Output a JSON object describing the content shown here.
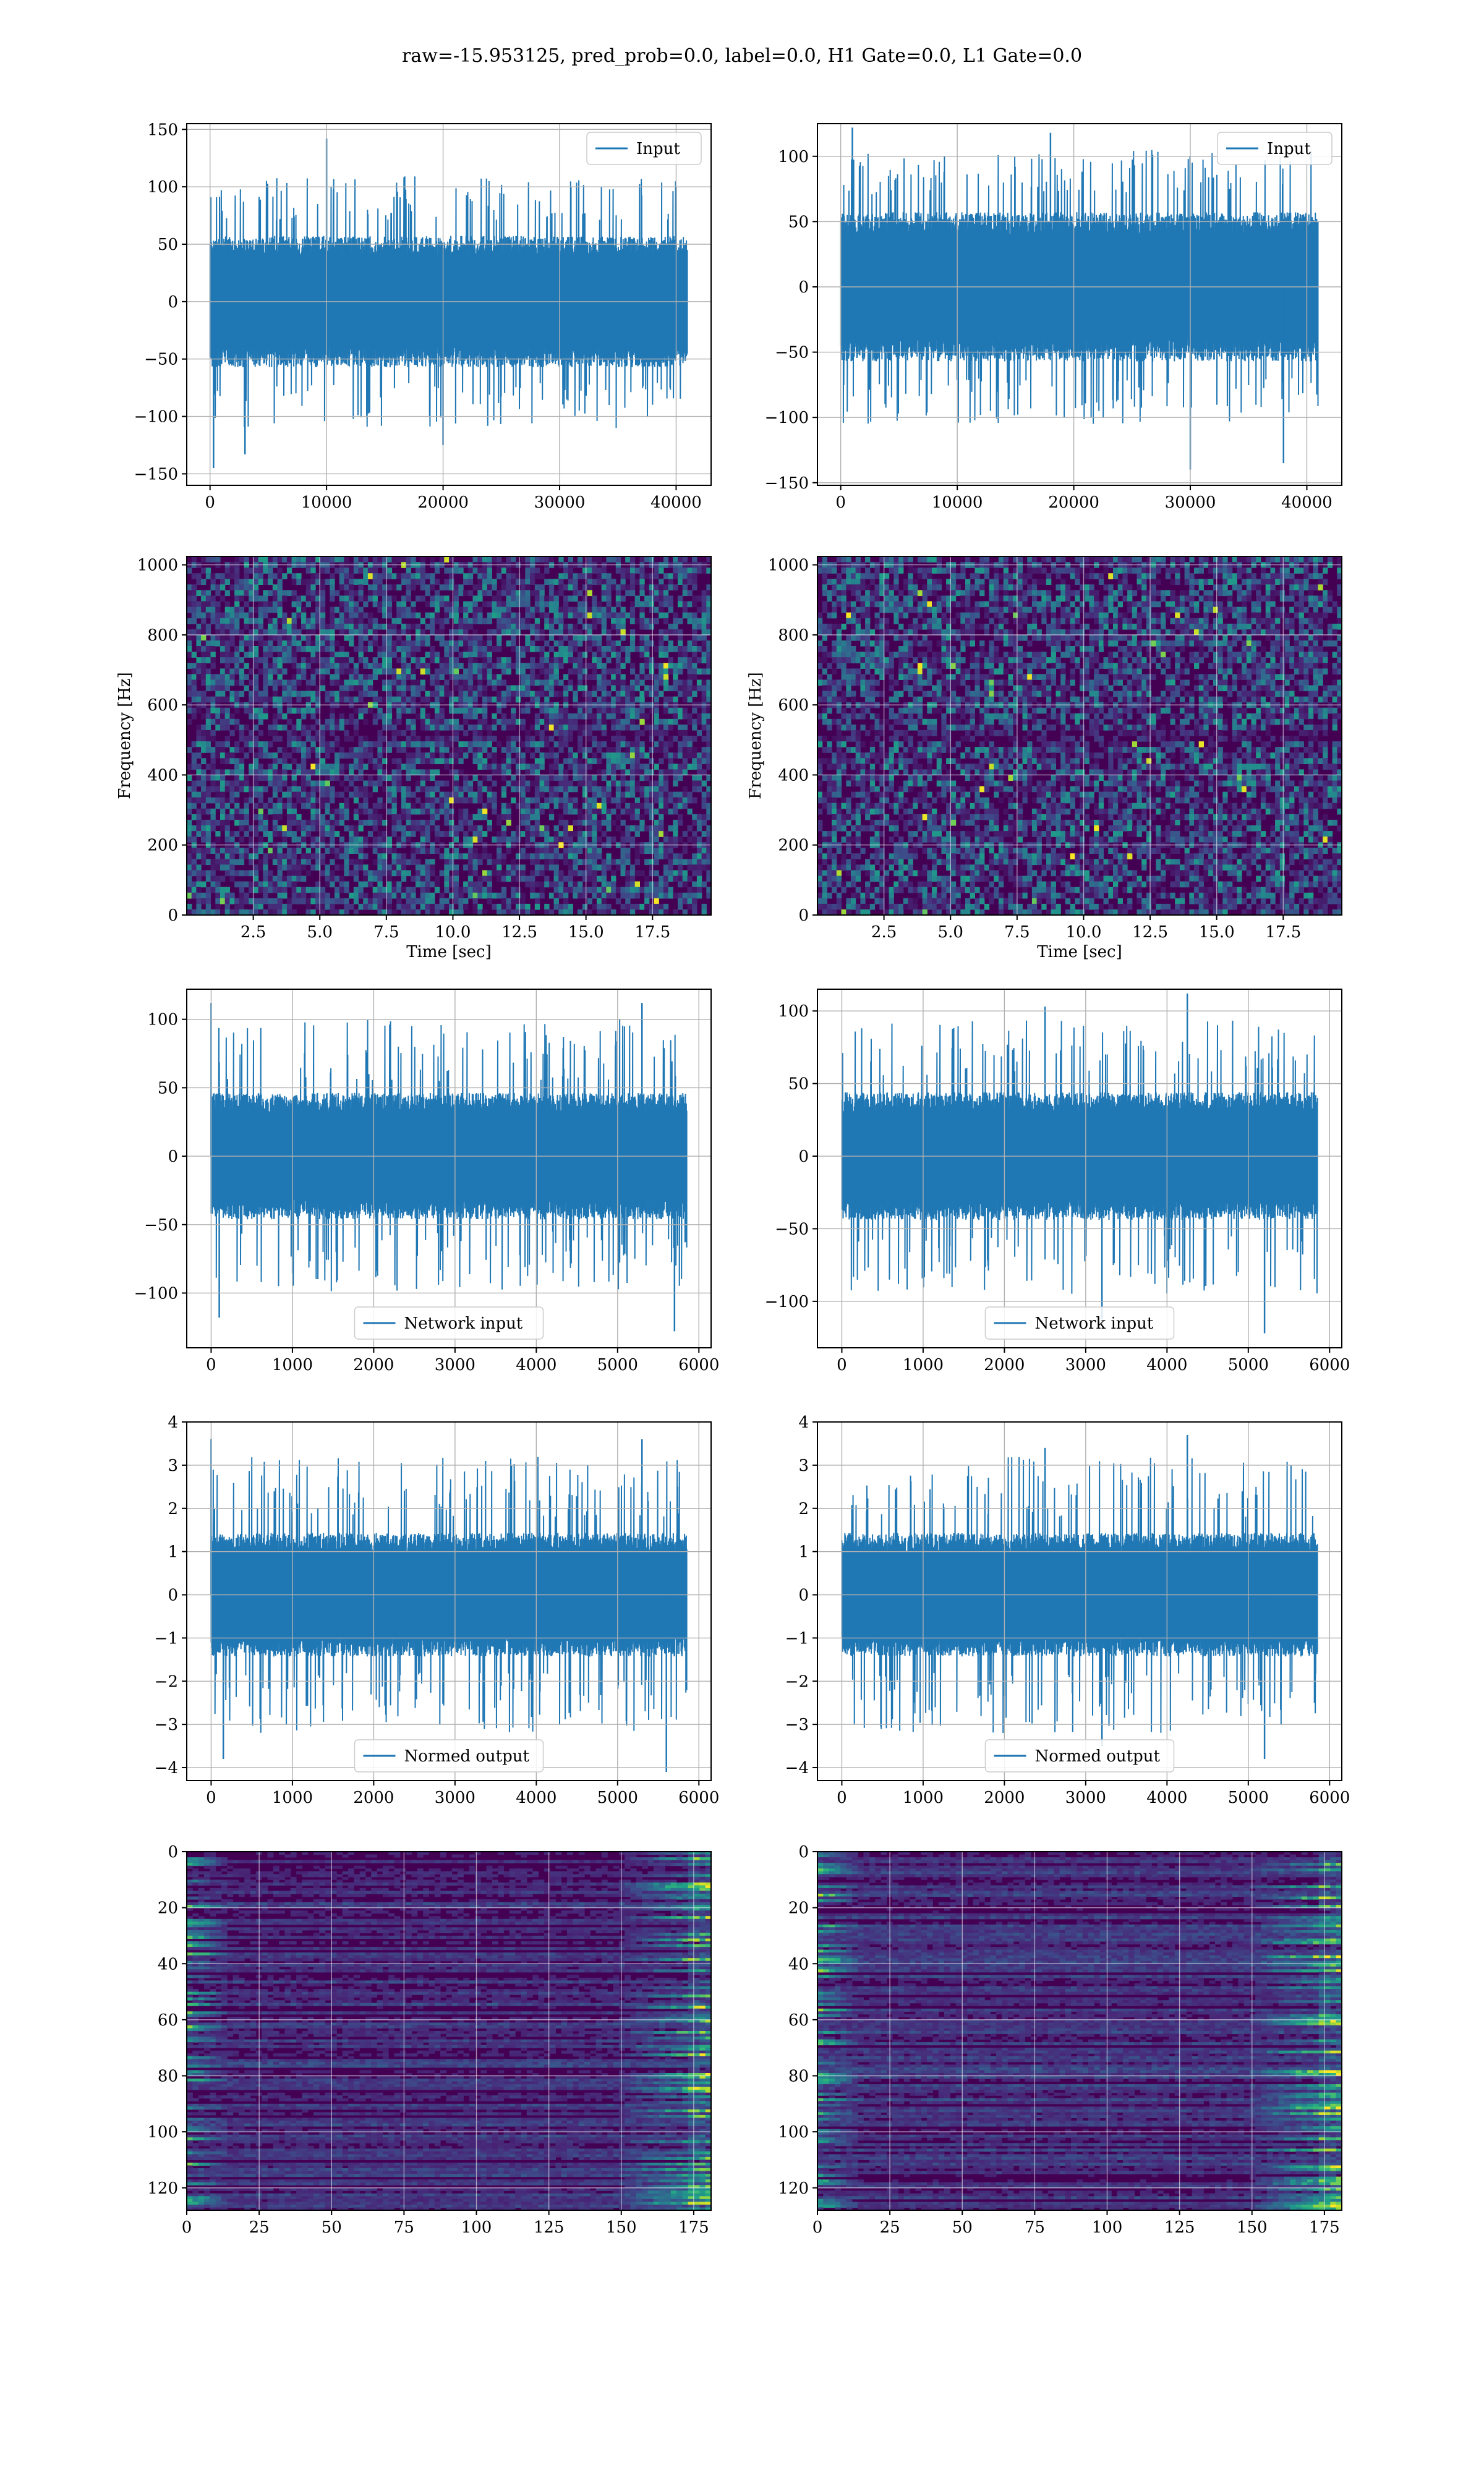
{
  "suptitle": "raw=-15.953125, pred_prob=0.0, label=0.0, H1 Gate=0.0, L1 Gate=0.0",
  "colors": {
    "series": "#1f77b4",
    "grid": "#b0b0b0",
    "viridis": [
      "#440154",
      "#482878",
      "#3e4989",
      "#31688e",
      "#26828e",
      "#1f9e89",
      "#35b779",
      "#6ece58",
      "#b5de2b",
      "#fde725"
    ]
  },
  "chart_data": [
    {
      "id": "input-h1",
      "type": "line",
      "column": "left",
      "row": 1,
      "legend": "Input",
      "legend_loc": "upper right",
      "xlim": [
        -2000,
        43000
      ],
      "ylim": [
        -160,
        155
      ],
      "xticks": [
        0,
        10000,
        20000,
        30000,
        40000
      ],
      "yticks": [
        -150,
        -100,
        -50,
        0,
        50,
        100,
        150
      ],
      "x_range": [
        0,
        40959
      ],
      "band": 52,
      "spike_range": [
        70,
        110
      ],
      "extremes": [
        {
          "x": 10000,
          "y": 142
        },
        {
          "x": 300,
          "y": -145
        },
        {
          "x": 20000,
          "y": -125
        },
        {
          "x": 3000,
          "y": -133
        },
        {
          "x": 40000,
          "y": 100
        }
      ],
      "grid": true
    },
    {
      "id": "input-l1",
      "type": "line",
      "column": "right",
      "row": 1,
      "legend": "Input",
      "legend_loc": "upper right",
      "xlim": [
        -2000,
        43000
      ],
      "ylim": [
        -152,
        125
      ],
      "xticks": [
        0,
        10000,
        20000,
        30000,
        40000
      ],
      "yticks": [
        -150,
        -100,
        -50,
        0,
        50,
        100
      ],
      "x_range": [
        0,
        40959
      ],
      "band": 52,
      "spike_range": [
        70,
        105
      ],
      "extremes": [
        {
          "x": 1000,
          "y": 122
        },
        {
          "x": 30000,
          "y": -140
        },
        {
          "x": 38000,
          "y": -135
        },
        {
          "x": 18000,
          "y": 118
        }
      ],
      "grid": true
    },
    {
      "id": "spectrogram-h1",
      "type": "heatmap",
      "column": "left",
      "row": 2,
      "xlabel": "Time [sec]",
      "ylabel": "Frequency [Hz]",
      "xlim": [
        0,
        19.7
      ],
      "ylim": [
        0,
        1024
      ],
      "xticks": [
        2.5,
        5.0,
        7.5,
        10.0,
        12.5,
        15.0,
        17.5
      ],
      "xtick_labels": [
        "2.5",
        "5.0",
        "7.5",
        "10.0",
        "12.5",
        "15.0",
        "17.5"
      ],
      "yticks": [
        0,
        200,
        400,
        600,
        800,
        1000
      ],
      "colormap": "viridis",
      "seed": 11,
      "grid": true
    },
    {
      "id": "spectrogram-l1",
      "type": "heatmap",
      "column": "right",
      "row": 2,
      "xlabel": "Time [sec]",
      "ylabel": "Frequency [Hz]",
      "xlim": [
        0,
        19.7
      ],
      "ylim": [
        0,
        1024
      ],
      "xticks": [
        2.5,
        5.0,
        7.5,
        10.0,
        12.5,
        15.0,
        17.5
      ],
      "xtick_labels": [
        "2.5",
        "5.0",
        "7.5",
        "10.0",
        "12.5",
        "15.0",
        "17.5"
      ],
      "yticks": [
        0,
        200,
        400,
        600,
        800,
        1000
      ],
      "colormap": "viridis",
      "seed": 23,
      "grid": true
    },
    {
      "id": "network-input-h1",
      "type": "line",
      "column": "left",
      "row": 3,
      "legend": "Network input",
      "legend_loc": "lower center",
      "xlim": [
        -300,
        6150
      ],
      "ylim": [
        -140,
        122
      ],
      "xticks": [
        0,
        1000,
        2000,
        3000,
        4000,
        5000,
        6000
      ],
      "yticks": [
        -100,
        -50,
        0,
        50,
        100
      ],
      "x_range": [
        0,
        5850
      ],
      "band": 42,
      "spike_range": [
        55,
        100
      ],
      "extremes": [
        {
          "x": 0,
          "y": 112
        },
        {
          "x": 100,
          "y": -118
        },
        {
          "x": 5700,
          "y": -128
        },
        {
          "x": 5300,
          "y": 112
        }
      ],
      "grid": true
    },
    {
      "id": "network-input-l1",
      "type": "line",
      "column": "right",
      "row": 3,
      "legend": "Network input",
      "legend_loc": "lower center",
      "xlim": [
        -300,
        6150
      ],
      "ylim": [
        -132,
        115
      ],
      "xticks": [
        0,
        1000,
        2000,
        3000,
        4000,
        5000,
        6000
      ],
      "yticks": [
        -100,
        -50,
        0,
        50,
        100
      ],
      "x_range": [
        0,
        5850
      ],
      "band": 40,
      "spike_range": [
        55,
        95
      ],
      "extremes": [
        {
          "x": 4250,
          "y": 112
        },
        {
          "x": 5200,
          "y": -122
        },
        {
          "x": 3200,
          "y": -112
        },
        {
          "x": 2500,
          "y": 103
        }
      ],
      "grid": true
    },
    {
      "id": "normed-output-h1",
      "type": "line",
      "column": "left",
      "row": 4,
      "legend": "Normed output",
      "legend_loc": "lower center",
      "xlim": [
        -300,
        6150
      ],
      "ylim": [
        -4.3,
        4.0
      ],
      "xticks": [
        0,
        1000,
        2000,
        3000,
        4000,
        5000,
        6000
      ],
      "yticks": [
        -4,
        -3,
        -2,
        -1,
        0,
        1,
        2,
        3,
        4
      ],
      "x_range": [
        0,
        5850
      ],
      "band": 1.3,
      "spike_range": [
        1.8,
        3.2
      ],
      "extremes": [
        {
          "x": 0,
          "y": 3.6
        },
        {
          "x": 5300,
          "y": 3.6
        },
        {
          "x": 5600,
          "y": -4.1
        },
        {
          "x": 150,
          "y": -3.8
        }
      ],
      "grid": true
    },
    {
      "id": "normed-output-l1",
      "type": "line",
      "column": "right",
      "row": 4,
      "legend": "Normed output",
      "legend_loc": "lower center",
      "xlim": [
        -300,
        6150
      ],
      "ylim": [
        -4.3,
        4.0
      ],
      "xticks": [
        0,
        1000,
        2000,
        3000,
        4000,
        5000,
        6000
      ],
      "yticks": [
        -4,
        -3,
        -2,
        -1,
        0,
        1,
        2,
        3,
        4
      ],
      "x_range": [
        0,
        5850
      ],
      "band": 1.3,
      "spike_range": [
        1.8,
        3.2
      ],
      "extremes": [
        {
          "x": 4250,
          "y": 3.7
        },
        {
          "x": 5200,
          "y": -3.8
        },
        {
          "x": 3200,
          "y": -3.5
        },
        {
          "x": 2500,
          "y": 3.4
        }
      ],
      "grid": true
    },
    {
      "id": "feature-map-h1",
      "type": "heatmap",
      "column": "left",
      "row": 5,
      "xlim": [
        0,
        181
      ],
      "ylim": [
        128,
        0
      ],
      "xticks": [
        0,
        25,
        50,
        75,
        100,
        125,
        150,
        175
      ],
      "yticks": [
        0,
        20,
        40,
        60,
        80,
        100,
        120
      ],
      "colormap": "viridis",
      "seed": 37,
      "grid": true
    },
    {
      "id": "feature-map-l1",
      "type": "heatmap",
      "column": "right",
      "row": 5,
      "xlim": [
        0,
        181
      ],
      "ylim": [
        128,
        0
      ],
      "xticks": [
        0,
        25,
        50,
        75,
        100,
        125,
        150,
        175
      ],
      "yticks": [
        0,
        20,
        40,
        60,
        80,
        100,
        120
      ],
      "colormap": "viridis",
      "seed": 53,
      "grid": true
    }
  ]
}
